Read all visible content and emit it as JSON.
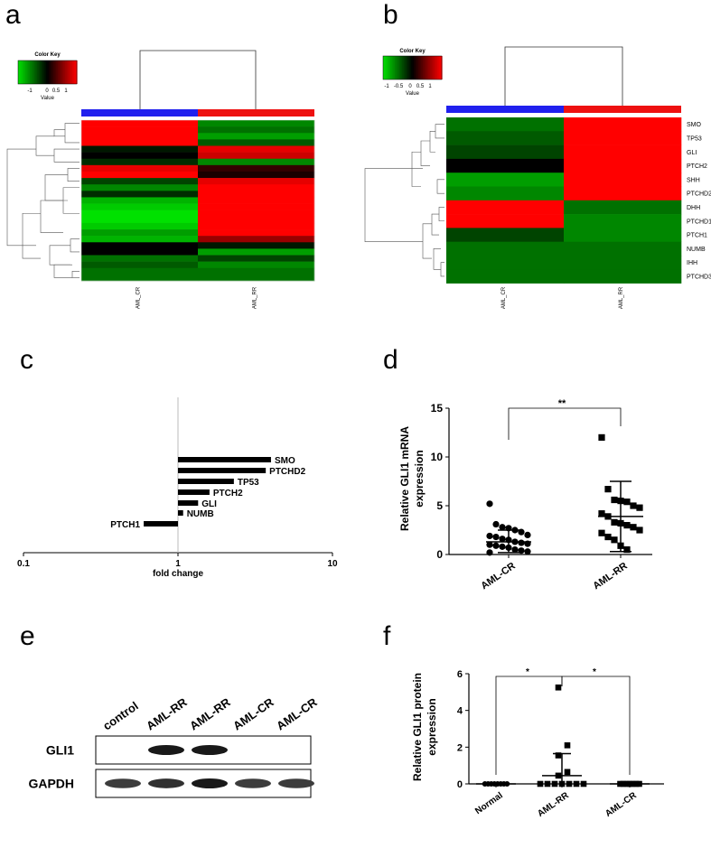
{
  "panel_letters": [
    "a",
    "b",
    "c",
    "d",
    "e",
    "f"
  ],
  "chart_data": [
    {
      "panel": "a",
      "type": "heatmap",
      "color_key": {
        "title": "Color Key",
        "value_label": "Value",
        "ticks": [
          "-1",
          "0",
          "0.5",
          "1"
        ],
        "colors": [
          "#00e000",
          "#000000",
          "#ff0000"
        ]
      },
      "columns": [
        "AML_CR",
        "AML_RR"
      ],
      "column_bar_colors": [
        "#2020ee",
        "#ee1111"
      ],
      "rows": [
        [
          1,
          -0.6
        ],
        [
          1,
          -0.5
        ],
        [
          1,
          -0.7
        ],
        [
          1,
          -0.4
        ],
        [
          -0.1,
          0.9
        ],
        [
          0,
          0.8
        ],
        [
          -0.2,
          -0.6
        ],
        [
          0.9,
          0.2
        ],
        [
          1,
          0.1
        ],
        [
          -0.3,
          0.9
        ],
        [
          -0.6,
          1
        ],
        [
          -0.2,
          1
        ],
        [
          -0.8,
          1
        ],
        [
          -0.9,
          1
        ],
        [
          -1,
          1
        ],
        [
          -1,
          1
        ],
        [
          -0.9,
          1
        ],
        [
          -0.7,
          1
        ],
        [
          -0.8,
          0.6
        ],
        [
          0,
          -0.1
        ],
        [
          0,
          -0.7
        ],
        [
          -0.5,
          -0.3
        ],
        [
          -0.4,
          -0.6
        ],
        [
          -0.5,
          -0.5
        ],
        [
          -0.5,
          -0.5
        ]
      ]
    },
    {
      "panel": "b",
      "type": "heatmap",
      "color_key": {
        "title": "Color Key",
        "value_label": "Value",
        "ticks": [
          "-1",
          "-0.5",
          "0",
          "0.5",
          "1"
        ],
        "colors": [
          "#00e000",
          "#000000",
          "#ff0000"
        ]
      },
      "columns": [
        "AML_CR",
        "AML_RR"
      ],
      "column_bar_colors": [
        "#2020ee",
        "#ee1111"
      ],
      "row_labels": [
        "SMO",
        "TP53",
        "GLI",
        "PTCH2",
        "SHH",
        "PTCHD2",
        "DHH",
        "PTCHD1",
        "PTCH1",
        "NUMB",
        "IHH",
        "PTCHD3"
      ],
      "rows": [
        [
          -0.5,
          1
        ],
        [
          -0.4,
          1
        ],
        [
          -0.3,
          1
        ],
        [
          0,
          1
        ],
        [
          -0.7,
          1
        ],
        [
          -0.6,
          1
        ],
        [
          1,
          -0.5
        ],
        [
          1,
          -0.6
        ],
        [
          -0.3,
          -0.6
        ],
        [
          -0.5,
          -0.5
        ],
        [
          -0.5,
          -0.5
        ],
        [
          -0.5,
          -0.5
        ]
      ]
    },
    {
      "panel": "c",
      "type": "bar",
      "orientation": "horizontal",
      "scale": "log",
      "xlabel": "fold change",
      "xticks": [
        "0.1",
        "1",
        "10"
      ],
      "xlim": [
        0.1,
        10
      ],
      "categories": [
        "SMO",
        "PTCHD2",
        "TP53",
        "PTCH2",
        "GLI",
        "NUMB",
        "PTCH1"
      ],
      "values": [
        4.0,
        3.7,
        2.3,
        1.6,
        1.35,
        1.08,
        0.6
      ]
    },
    {
      "panel": "d",
      "type": "scatter",
      "ylabel": "Relative GLI1  mRNA expression",
      "categories": [
        "AML-CR",
        "AML-RR"
      ],
      "yticks": [
        "0",
        "5",
        "10",
        "15"
      ],
      "ylim": [
        0,
        15
      ],
      "significance": "**",
      "series": [
        {
          "marker": "circle",
          "mean": 1.3,
          "sd_upper": 2.5,
          "sd_lower": 0.2,
          "values": [
            5.2,
            3.1,
            2.8,
            2.7,
            2.5,
            2.3,
            2.0,
            1.9,
            1.8,
            1.6,
            1.5,
            1.3,
            1.2,
            1.1,
            1.0,
            0.9,
            0.8,
            0.7,
            0.5,
            0.4,
            0.3,
            0.2
          ]
        },
        {
          "marker": "square",
          "mean": 3.9,
          "sd_upper": 7.5,
          "sd_lower": 0.3,
          "values": [
            12.0,
            6.7,
            5.6,
            5.5,
            5.4,
            5.0,
            4.8,
            4.2,
            3.9,
            3.3,
            3.2,
            3.0,
            2.8,
            2.5,
            2.2,
            1.8,
            1.5,
            0.9,
            0.5
          ]
        }
      ]
    },
    {
      "panel": "e",
      "type": "table",
      "lanes": [
        "control",
        "AML-RR",
        "AML-RR",
        "AML-CR",
        "AML-CR"
      ],
      "rows": [
        {
          "label": "GLI1",
          "band_intensity": [
            0,
            1,
            1,
            0,
            0
          ]
        },
        {
          "label": "GAPDH",
          "band_intensity": [
            0.85,
            0.9,
            1,
            0.85,
            0.85
          ]
        }
      ]
    },
    {
      "panel": "f",
      "type": "scatter",
      "ylabel": "Relative GLI1  protein expression",
      "categories": [
        "Normal",
        "AML-RR",
        "AML-CR"
      ],
      "yticks": [
        "0",
        "2",
        "4",
        "6"
      ],
      "ylim": [
        0,
        6
      ],
      "significance": [
        "*",
        "*"
      ],
      "series": [
        {
          "marker": "circle",
          "mean": 0,
          "sd_upper": 0,
          "sd_lower": 0,
          "values": [
            0,
            0,
            0,
            0,
            0,
            0,
            0,
            0
          ]
        },
        {
          "marker": "square",
          "mean": 0.45,
          "sd_upper": 1.65,
          "sd_lower": -0.75,
          "values": [
            5.25,
            2.1,
            1.55,
            0.65,
            0.45,
            0.0,
            0.0,
            0.0,
            0.0,
            0.0,
            0.0,
            0.0
          ]
        },
        {
          "marker": "square",
          "mean": 0,
          "sd_upper": 0,
          "sd_lower": 0,
          "values": [
            0,
            0,
            0,
            0,
            0,
            0,
            0
          ]
        }
      ]
    }
  ]
}
